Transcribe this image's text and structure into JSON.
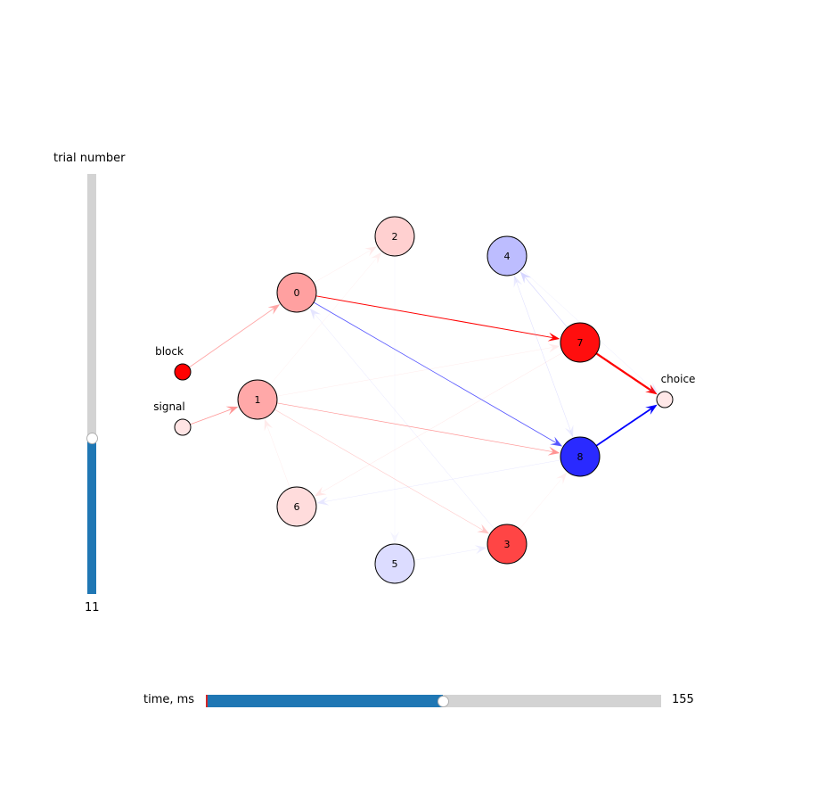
{
  "sliders": {
    "trial": {
      "label": "trial number",
      "value": "11",
      "level": 0.37
    },
    "time": {
      "label": "time, ms",
      "value": "155",
      "level": 0.52
    }
  },
  "graph": {
    "nodes": [
      {
        "id": "0",
        "label": "0",
        "fill": "#ffa0a0"
      },
      {
        "id": "1",
        "label": "1",
        "fill": "#ffa8a8"
      },
      {
        "id": "2",
        "label": "2",
        "fill": "#ffd0d0"
      },
      {
        "id": "3",
        "label": "3",
        "fill": "#ff4545"
      },
      {
        "id": "4",
        "label": "4",
        "fill": "#bdbdff"
      },
      {
        "id": "5",
        "label": "5",
        "fill": "#dcdcff"
      },
      {
        "id": "6",
        "label": "6",
        "fill": "#ffdcdc"
      },
      {
        "id": "7",
        "label": "7",
        "fill": "#ff0e0e"
      },
      {
        "id": "8",
        "label": "8",
        "fill": "#2a2aff"
      }
    ],
    "inputs": [
      {
        "id": "block",
        "label": "block",
        "fill": "#ff0000"
      },
      {
        "id": "signal",
        "label": "signal",
        "fill": "#ffe4e4"
      }
    ],
    "output": {
      "id": "choice",
      "label": "choice",
      "fill": "#ffe8e8"
    },
    "edges": [
      {
        "from": "block",
        "to": "0",
        "color": "#ff6060",
        "opacity": 0.55,
        "width": 0.9
      },
      {
        "from": "signal",
        "to": "1",
        "color": "#ff6060",
        "opacity": 0.65,
        "width": 0.9
      },
      {
        "from": "0",
        "to": "7",
        "color": "#ff0000",
        "opacity": 1.0,
        "width": 1.0
      },
      {
        "from": "0",
        "to": "8",
        "color": "#2020ff",
        "opacity": 0.75,
        "width": 0.8
      },
      {
        "from": "1",
        "to": "8",
        "color": "#ff4040",
        "opacity": 0.55,
        "width": 0.7
      },
      {
        "from": "1",
        "to": "3",
        "color": "#ff6060",
        "opacity": 0.35,
        "width": 0.6
      },
      {
        "from": "7",
        "to": "choice",
        "color": "#ff0000",
        "opacity": 1.0,
        "width": 2.2
      },
      {
        "from": "8",
        "to": "choice",
        "color": "#0000ff",
        "opacity": 1.0,
        "width": 1.8
      },
      {
        "from": "7",
        "to": "4",
        "color": "#6060ff",
        "opacity": 0.25,
        "width": 0.6
      },
      {
        "from": "8",
        "to": "4",
        "color": "#8080ff",
        "opacity": 0.15,
        "width": 0.5
      },
      {
        "from": "4",
        "to": "8",
        "color": "#8080ff",
        "opacity": 0.15,
        "width": 0.5
      },
      {
        "from": "3",
        "to": "0",
        "color": "#8080ff",
        "opacity": 0.2,
        "width": 0.5
      },
      {
        "from": "8",
        "to": "6",
        "color": "#8080ff",
        "opacity": 0.18,
        "width": 0.5
      },
      {
        "from": "7",
        "to": "6",
        "color": "#ff8080",
        "opacity": 0.2,
        "width": 0.5
      },
      {
        "from": "1",
        "to": "7",
        "color": "#ff8080",
        "opacity": 0.15,
        "width": 0.5
      },
      {
        "from": "1",
        "to": "2",
        "color": "#ff8080",
        "opacity": 0.12,
        "width": 0.5
      },
      {
        "from": "0",
        "to": "2",
        "color": "#ff8080",
        "opacity": 0.15,
        "width": 0.5
      },
      {
        "from": "5",
        "to": "3",
        "color": "#8080ff",
        "opacity": 0.15,
        "width": 0.5
      },
      {
        "from": "3",
        "to": "8",
        "color": "#ff8080",
        "opacity": 0.12,
        "width": 0.5
      },
      {
        "from": "6",
        "to": "1",
        "color": "#ff8080",
        "opacity": 0.15,
        "width": 0.5
      },
      {
        "from": "2",
        "to": "5",
        "color": "#8080ff",
        "opacity": 0.08,
        "width": 0.5
      },
      {
        "from": "4",
        "to": "choice",
        "color": "#8080ff",
        "opacity": 0.15,
        "width": 0.5
      }
    ]
  }
}
